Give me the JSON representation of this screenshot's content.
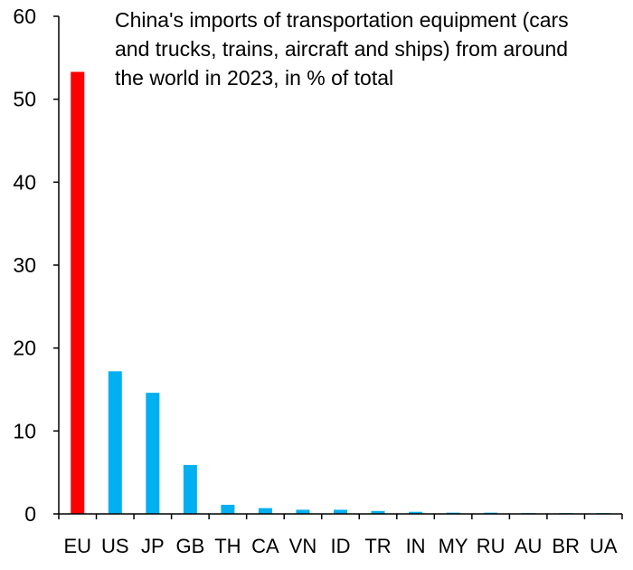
{
  "chart_data": {
    "type": "bar",
    "title": "China's imports of transportation equipment (cars\nand trucks, trains, aircraft and ships) from around\nthe world in 2023, in % of total",
    "xlabel": "",
    "ylabel": "",
    "ylim": [
      0,
      60
    ],
    "yticks": [
      0,
      10,
      20,
      30,
      40,
      50,
      60
    ],
    "grid": false,
    "categories": [
      "EU",
      "US",
      "JP",
      "GB",
      "TH",
      "CA",
      "VN",
      "ID",
      "TR",
      "IN",
      "MY",
      "RU",
      "AU",
      "BR",
      "UA"
    ],
    "values": [
      53.3,
      17.2,
      14.6,
      5.9,
      1.1,
      0.7,
      0.5,
      0.5,
      0.35,
      0.25,
      0.15,
      0.15,
      0.1,
      0.1,
      0.1
    ],
    "bar_colors": [
      "#ff0000",
      "#00b0f0",
      "#00b0f0",
      "#00b0f0",
      "#00b0f0",
      "#00b0f0",
      "#00b0f0",
      "#00b0f0",
      "#00b0f0",
      "#00b0f0",
      "#00b0f0",
      "#00b0f0",
      "#00b0f0",
      "#00b0f0",
      "#00b0f0"
    ],
    "axis_color": "#000000"
  }
}
